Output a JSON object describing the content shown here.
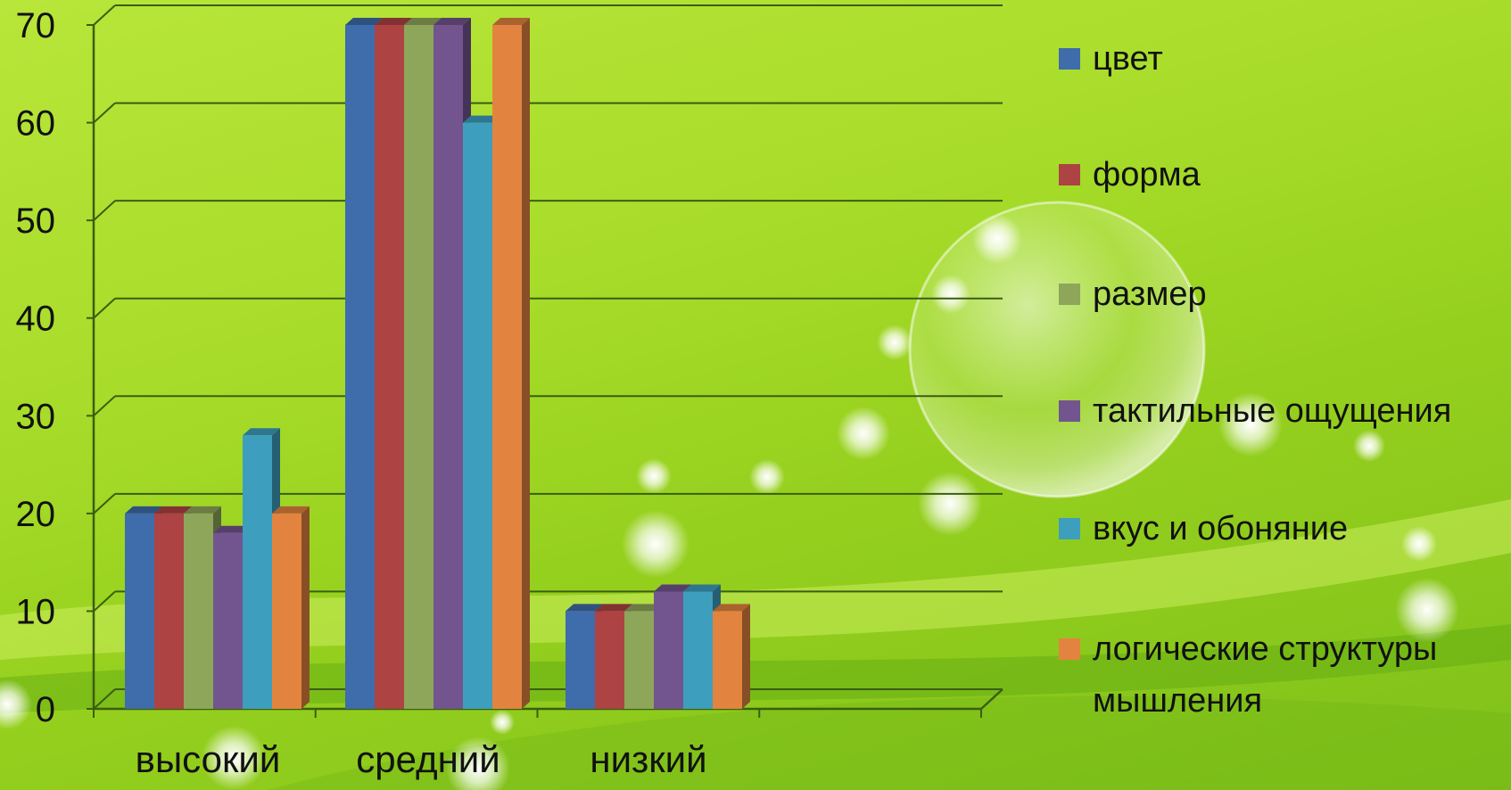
{
  "chart_data": {
    "type": "bar",
    "categories": [
      "высокий",
      "средний",
      "низкий"
    ],
    "series": [
      {
        "name": "цвет",
        "color": "#3f6cab",
        "values": [
          20,
          70,
          10
        ]
      },
      {
        "name": "форма",
        "color": "#ad4343",
        "values": [
          20,
          70,
          10
        ]
      },
      {
        "name": "размер",
        "color": "#8ea65a",
        "values": [
          20,
          70,
          10
        ]
      },
      {
        "name": "тактильные ощущения",
        "color": "#72558f",
        "values": [
          18,
          70,
          12
        ]
      },
      {
        "name": "вкус и обоняние",
        "color": "#3d9fbd",
        "values": [
          28,
          60,
          12
        ]
      },
      {
        "name": "логические структуры мышления",
        "color": "#e2843f",
        "values": [
          20,
          70,
          10
        ]
      }
    ],
    "yticks": [
      0,
      10,
      20,
      30,
      40,
      50,
      60,
      70
    ],
    "ylim": [
      0,
      70
    ],
    "grid": true,
    "legend": "right",
    "title": "",
    "xlabel": "",
    "ylabel": ""
  },
  "legend_lines": [
    [
      "цвет"
    ],
    [
      "форма"
    ],
    [
      "размер"
    ],
    [
      "тактильные ощущения"
    ],
    [
      "вкус и обоняние"
    ],
    [
      "логические структуры",
      "мышления"
    ]
  ]
}
